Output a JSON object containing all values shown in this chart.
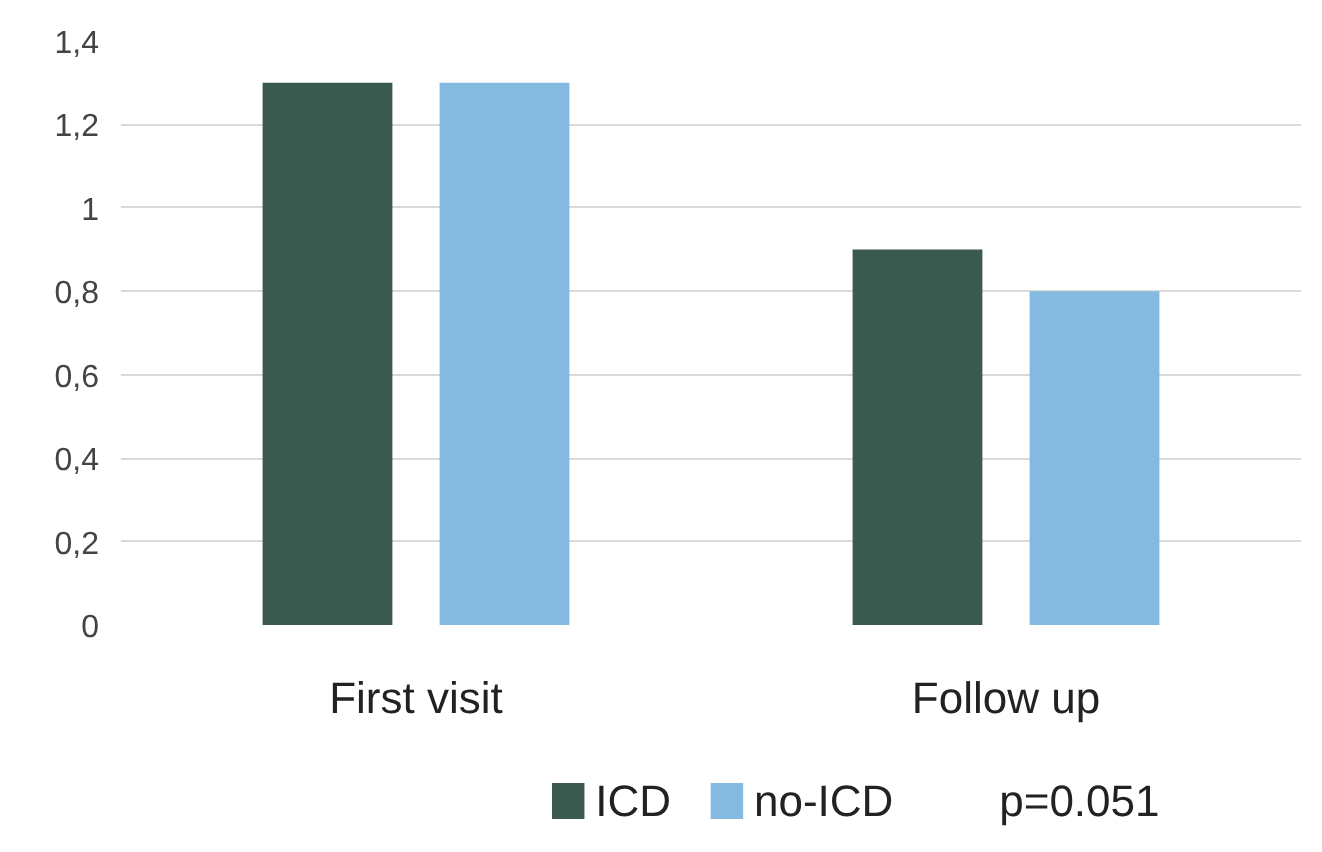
{
  "chart_data": {
    "type": "bar",
    "categories": [
      "First visit",
      "Follow up"
    ],
    "series": [
      {
        "name": "ICD",
        "color": "#3b5a4f",
        "values": [
          1.3,
          0.9
        ]
      },
      {
        "name": "no-ICD",
        "color": "#85bae0",
        "values": [
          1.3,
          0.8
        ]
      }
    ],
    "ylim": [
      0,
      1.4
    ],
    "yticks": [
      0,
      {
        "value": 0.2,
        "label": "0,2"
      },
      {
        "value": 0.4,
        "label": "0,4"
      },
      {
        "value": 0.6,
        "label": "0,6"
      },
      {
        "value": 0.8,
        "label": "0,8"
      },
      1,
      {
        "value": 1.2,
        "label": "1,2"
      },
      {
        "value": 1.4,
        "label": "1,4"
      }
    ],
    "grid": "y",
    "legend": "bottom",
    "annotations": [
      "p=0.051"
    ]
  }
}
